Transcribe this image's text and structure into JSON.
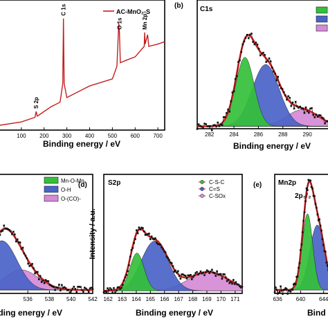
{
  "panels": {
    "a": {
      "legend": "AC-MnO₂-S"
    },
    "b": {
      "letter": "(b)",
      "title": "C1s"
    },
    "c": {
      "legend": [
        "Mn-O-Mn",
        "O-H",
        "O-(CO)-"
      ]
    },
    "d": {
      "letter": "(d)",
      "title": "S2p",
      "ylabel": "Intensity / a.u.",
      "legend": [
        "C-S-C",
        "C=S",
        "C-SOx"
      ]
    },
    "e": {
      "letter": "(e)",
      "title": "Mn2p",
      "annotation": "2p₃/₂",
      "xlabel_partial": "Bind"
    }
  },
  "colors": {
    "data": "#111111",
    "envelope": "#d42020",
    "green": "#34c03a",
    "blue": "#4a63c8",
    "pink": "#d58ad6"
  },
  "chart_data": [
    {
      "id": "a",
      "type": "line",
      "title": "",
      "xlabel": "Binding energy / eV",
      "ylabel": "",
      "xlim": [
        0,
        730
      ],
      "ylim": [
        0,
        100
      ],
      "xticks": [
        100,
        200,
        300,
        400,
        500,
        600,
        700
      ],
      "series": [
        {
          "name": "AC-MnO₂-S",
          "x": [
            0,
            100,
            160,
            165,
            170,
            230,
            270,
            282,
            285,
            288,
            300,
            400,
            500,
            520,
            528,
            531,
            535,
            560,
            600,
            640,
            642,
            644,
            655,
            660,
            700,
            730
          ],
          "y": [
            4,
            7,
            11,
            16,
            12,
            20,
            24,
            40,
            96,
            40,
            28,
            38,
            44,
            55,
            92,
            84,
            58,
            60,
            63,
            72,
            84,
            74,
            82,
            72,
            74,
            76
          ]
        }
      ],
      "annotations": [
        {
          "text": "S 2p",
          "x": 165
        },
        {
          "text": "C 1s",
          "x": 285
        },
        {
          "text": "O 1s",
          "x": 531
        },
        {
          "text": "Mn 2p",
          "x": 642
        }
      ]
    },
    {
      "id": "b",
      "type": "area",
      "title": "C1s",
      "xlabel": "Binding energy / eV",
      "ylabel": "",
      "xlim": [
        281,
        291.8
      ],
      "ylim": [
        0,
        100
      ],
      "xticks": [
        282,
        284,
        286,
        288,
        290
      ],
      "components": [
        {
          "color": "green",
          "center": 284.9,
          "width": 0.75,
          "height": 58
        },
        {
          "color": "blue",
          "center": 286.6,
          "width": 1.1,
          "height": 52
        },
        {
          "color": "pink",
          "center": 289.6,
          "width": 1.3,
          "height": 14
        }
      ],
      "baseline": 2
    },
    {
      "id": "c",
      "type": "area",
      "title": "",
      "xlabel": "Binding energy / eV",
      "ylabel": "",
      "xlim": [
        533.3,
        542
      ],
      "ylim": [
        0,
        100
      ],
      "xticks": [
        536,
        538,
        540,
        542
      ],
      "components": [
        {
          "color": "green",
          "center": 529.8,
          "width": 1.0,
          "height": 80
        },
        {
          "color": "blue",
          "center": 533.6,
          "width": 1.4,
          "height": 44
        },
        {
          "color": "pink",
          "center": 535.4,
          "width": 1.6,
          "height": 18
        }
      ],
      "baseline": 3,
      "series_names": [
        "Mn-O-Mn",
        "O-H",
        "O-(CO)-"
      ]
    },
    {
      "id": "d",
      "type": "area",
      "title": "S2p",
      "xlabel": "Binding energy / eV",
      "ylabel": "Intensity / a.u.",
      "xlim": [
        161.7,
        171.5
      ],
      "ylim": [
        0,
        100
      ],
      "xticks": [
        162,
        163,
        164,
        165,
        166,
        167,
        168,
        169,
        170,
        171
      ],
      "components": [
        {
          "color": "green",
          "center": 164.05,
          "width": 0.5,
          "height": 44
        },
        {
          "color": "blue",
          "center": 165.3,
          "width": 0.95,
          "height": 58
        },
        {
          "color": "pink",
          "center": 169.1,
          "width": 1.4,
          "height": 22
        }
      ],
      "baseline": 3,
      "series_names": [
        "C-S-C",
        "C=S",
        "C-SOx"
      ]
    },
    {
      "id": "e",
      "type": "area",
      "title": "Mn2p",
      "xlabel": "Bind",
      "ylabel": "",
      "xlim": [
        635.5,
        645
      ],
      "ylim": [
        0,
        100
      ],
      "xticks": [
        636,
        640,
        644
      ],
      "components": [
        {
          "color": "green",
          "center": 641.2,
          "width": 0.9,
          "height": 68
        },
        {
          "color": "blue",
          "center": 642.9,
          "width": 1.3,
          "height": 58
        }
      ],
      "baseline": 3
    }
  ]
}
